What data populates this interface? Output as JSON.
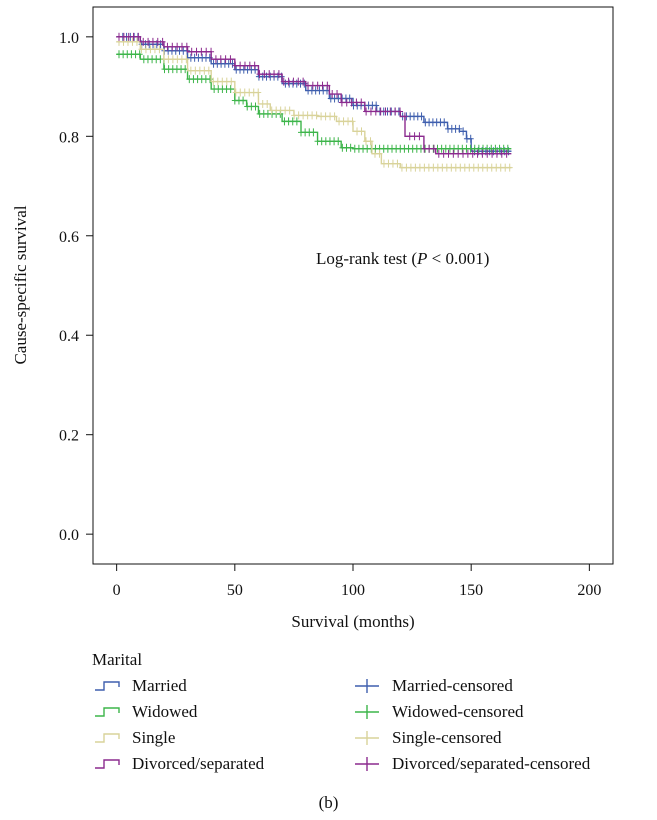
{
  "chart_data": {
    "type": "line",
    "title": "",
    "xlabel": "Survival (months)",
    "ylabel": "Cause-specific survival",
    "xlim": [
      -10,
      210
    ],
    "ylim": [
      -0.06,
      1.06
    ],
    "xticks": [
      0,
      50,
      100,
      150,
      200
    ],
    "yticks": [
      0.0,
      0.2,
      0.4,
      0.6,
      0.8,
      1.0
    ],
    "ytick_labels": [
      "0.0",
      "0.2",
      "0.4",
      "0.6",
      "0.8",
      "1.0"
    ],
    "grid": false,
    "annotation": {
      "text_before": "Log-rank test (",
      "italic": "P",
      "text_after": " < 0.001)"
    },
    "legend_title": "Marital",
    "legend": [
      {
        "label": "Married",
        "kind": "step",
        "color": "#3f5fae"
      },
      {
        "label": "Married-censored",
        "kind": "censor",
        "color": "#3f5fae"
      },
      {
        "label": "Widowed",
        "kind": "step",
        "color": "#3db54a"
      },
      {
        "label": "Widowed-censored",
        "kind": "censor",
        "color": "#3db54a"
      },
      {
        "label": "Single",
        "kind": "step",
        "color": "#d9d39a"
      },
      {
        "label": "Single-censored",
        "kind": "censor",
        "color": "#d9d39a"
      },
      {
        "label": "Divorced/separated",
        "kind": "step",
        "color": "#8b2a8e"
      },
      {
        "label": "Divorced/separated-censored",
        "kind": "censor",
        "color": "#8b2a8e"
      }
    ],
    "series": [
      {
        "color": "#3f5fae",
        "points": [
          [
            0,
            1.0
          ],
          [
            10,
            0.985
          ],
          [
            20,
            0.972
          ],
          [
            30,
            0.958
          ],
          [
            40,
            0.946
          ],
          [
            50,
            0.934
          ],
          [
            60,
            0.92
          ],
          [
            70,
            0.906
          ],
          [
            80,
            0.892
          ],
          [
            90,
            0.876
          ],
          [
            100,
            0.862
          ],
          [
            110,
            0.85
          ],
          [
            120,
            0.84
          ],
          [
            130,
            0.828
          ],
          [
            140,
            0.815
          ],
          [
            145,
            0.81
          ],
          [
            148,
            0.795
          ],
          [
            150,
            0.77
          ],
          [
            167,
            0.77
          ]
        ]
      },
      {
        "color": "#3db54a",
        "points": [
          [
            0,
            0.965
          ],
          [
            10,
            0.955
          ],
          [
            20,
            0.935
          ],
          [
            30,
            0.915
          ],
          [
            40,
            0.895
          ],
          [
            50,
            0.872
          ],
          [
            55,
            0.86
          ],
          [
            60,
            0.845
          ],
          [
            70,
            0.83
          ],
          [
            78,
            0.808
          ],
          [
            85,
            0.79
          ],
          [
            95,
            0.777
          ],
          [
            100,
            0.775
          ],
          [
            110,
            0.775
          ],
          [
            120,
            0.775
          ],
          [
            167,
            0.775
          ]
        ]
      },
      {
        "color": "#d9d39a",
        "points": [
          [
            0,
            0.99
          ],
          [
            10,
            0.975
          ],
          [
            20,
            0.955
          ],
          [
            30,
            0.932
          ],
          [
            40,
            0.91
          ],
          [
            50,
            0.888
          ],
          [
            60,
            0.865
          ],
          [
            65,
            0.852
          ],
          [
            75,
            0.842
          ],
          [
            85,
            0.84
          ],
          [
            93,
            0.83
          ],
          [
            100,
            0.81
          ],
          [
            105,
            0.79
          ],
          [
            108,
            0.765
          ],
          [
            112,
            0.745
          ],
          [
            120,
            0.737
          ],
          [
            167,
            0.737
          ]
        ]
      },
      {
        "color": "#8b2a8e",
        "points": [
          [
            0,
            1.0
          ],
          [
            10,
            0.99
          ],
          [
            20,
            0.98
          ],
          [
            30,
            0.97
          ],
          [
            40,
            0.955
          ],
          [
            50,
            0.942
          ],
          [
            60,
            0.925
          ],
          [
            70,
            0.91
          ],
          [
            80,
            0.902
          ],
          [
            90,
            0.885
          ],
          [
            95,
            0.868
          ],
          [
            105,
            0.85
          ],
          [
            115,
            0.85
          ],
          [
            120,
            0.84
          ],
          [
            122,
            0.8
          ],
          [
            128,
            0.8
          ],
          [
            130,
            0.775
          ],
          [
            135,
            0.765
          ],
          [
            167,
            0.765
          ]
        ]
      }
    ]
  },
  "caption": "(b)"
}
